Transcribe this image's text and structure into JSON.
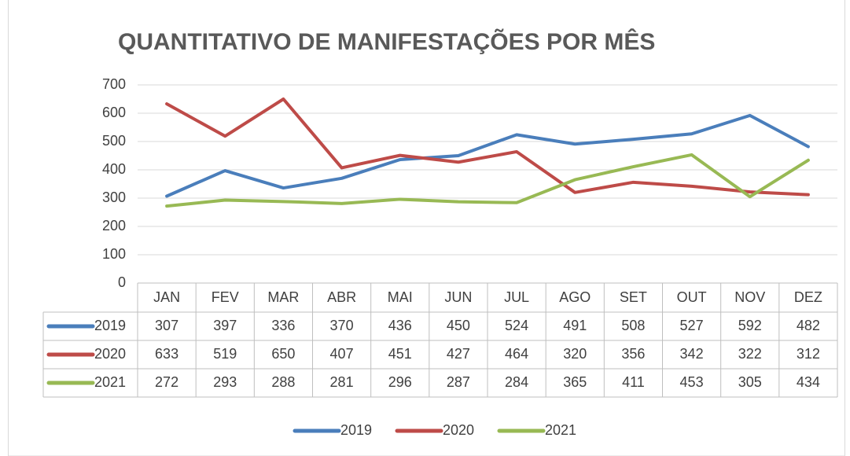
{
  "chart_data": {
    "type": "line",
    "title": "QUANTITATIVO DE MANIFESTAÇÕES POR MÊS",
    "categories": [
      "JAN",
      "FEV",
      "MAR",
      "ABR",
      "MAI",
      "JUN",
      "JUL",
      "AGO",
      "SET",
      "OUT",
      "NOV",
      "DEZ"
    ],
    "series": [
      {
        "name": "2019",
        "color": "#4a7ebb",
        "values": [
          307,
          397,
          336,
          370,
          436,
          450,
          524,
          491,
          508,
          527,
          592,
          482
        ]
      },
      {
        "name": "2020",
        "color": "#be4b48",
        "values": [
          633,
          519,
          650,
          407,
          451,
          427,
          464,
          320,
          356,
          342,
          322,
          312
        ]
      },
      {
        "name": "2021",
        "color": "#98b954",
        "values": [
          272,
          293,
          288,
          281,
          296,
          287,
          284,
          365,
          411,
          453,
          305,
          434
        ]
      }
    ],
    "ylim": [
      0,
      700
    ],
    "yticks": [
      0,
      100,
      200,
      300,
      400,
      500,
      600,
      700
    ],
    "grid": true,
    "legend": "bottom",
    "data_table": true
  }
}
